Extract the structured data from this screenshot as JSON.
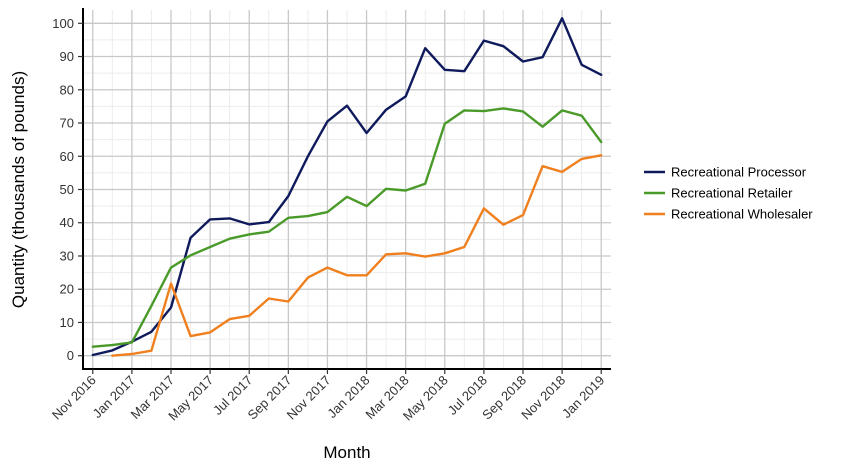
{
  "chart_data": {
    "type": "line",
    "xlabel": "Month",
    "ylabel": "Quantity (thousands of pounds)",
    "ylim": [
      -4,
      104
    ],
    "yticks": [
      0,
      10,
      20,
      30,
      40,
      50,
      60,
      70,
      80,
      90,
      100
    ],
    "xlim": [
      -0.5,
      26.5
    ],
    "x_tick_labels": [
      {
        "index": 0,
        "label": "Nov 2016"
      },
      {
        "index": 2,
        "label": "Jan 2017"
      },
      {
        "index": 4,
        "label": "Mar 2017"
      },
      {
        "index": 6,
        "label": "May 2017"
      },
      {
        "index": 8,
        "label": "Jul 2017"
      },
      {
        "index": 10,
        "label": "Sep 2017"
      },
      {
        "index": 12,
        "label": "Nov 2017"
      },
      {
        "index": 14,
        "label": "Jan 2018"
      },
      {
        "index": 16,
        "label": "Mar 2018"
      },
      {
        "index": 18,
        "label": "May 2018"
      },
      {
        "index": 20,
        "label": "Jul 2018"
      },
      {
        "index": 22,
        "label": "Sep 2018"
      },
      {
        "index": 24,
        "label": "Nov 2018"
      },
      {
        "index": 26,
        "label": "Jan 2019"
      }
    ],
    "grid": true,
    "legend_position": "right",
    "series": [
      {
        "name": "Recreational Processor",
        "color": "#0f1a5c",
        "x": [
          0,
          1,
          2,
          3,
          4,
          5,
          6,
          7,
          8,
          9,
          10,
          11,
          12,
          13,
          14,
          15,
          16,
          17,
          18,
          19,
          20,
          21,
          22,
          23,
          24,
          25,
          26
        ],
        "values": [
          0.2,
          1.6,
          4.2,
          7.2,
          14.5,
          35.5,
          41,
          41.3,
          39.5,
          40.2,
          48,
          60,
          70.5,
          75.2,
          67,
          74,
          78,
          92.5,
          86,
          85.6,
          94.8,
          93.1,
          88.5,
          89.8,
          101.5,
          87.5,
          84.5
        ]
      },
      {
        "name": "Recreational Retailer",
        "color": "#4a9a2a",
        "x": [
          0,
          1,
          2,
          3,
          4,
          5,
          6,
          7,
          8,
          9,
          10,
          11,
          12,
          13,
          14,
          15,
          16,
          17,
          18,
          19,
          20,
          21,
          22,
          23,
          24,
          25,
          26
        ],
        "values": [
          2.7,
          3.2,
          4,
          15,
          26.5,
          30.2,
          32.7,
          35.2,
          36.5,
          37.3,
          41.5,
          42,
          43.2,
          47.8,
          45,
          50.2,
          49.7,
          51.7,
          69.8,
          73.8,
          73.6,
          74.4,
          73.5,
          68.9,
          73.8,
          72.2,
          64.3
        ]
      },
      {
        "name": "Recreational Wholesaler",
        "color": "#f07f1e",
        "x": [
          1,
          2,
          3,
          4,
          5,
          6,
          7,
          8,
          9,
          10,
          11,
          12,
          13,
          14,
          15,
          16,
          17,
          18,
          19,
          20,
          21,
          22,
          23,
          24,
          25,
          26
        ],
        "values": [
          0,
          0.5,
          1.5,
          21.7,
          5.9,
          7,
          11,
          12,
          17.2,
          16.3,
          23.5,
          26.5,
          24.2,
          24.2,
          30.5,
          30.8,
          29.8,
          30.8,
          32.7,
          44.3,
          39.4,
          42.3,
          57,
          55.3,
          59.2,
          60.3
        ]
      }
    ]
  }
}
